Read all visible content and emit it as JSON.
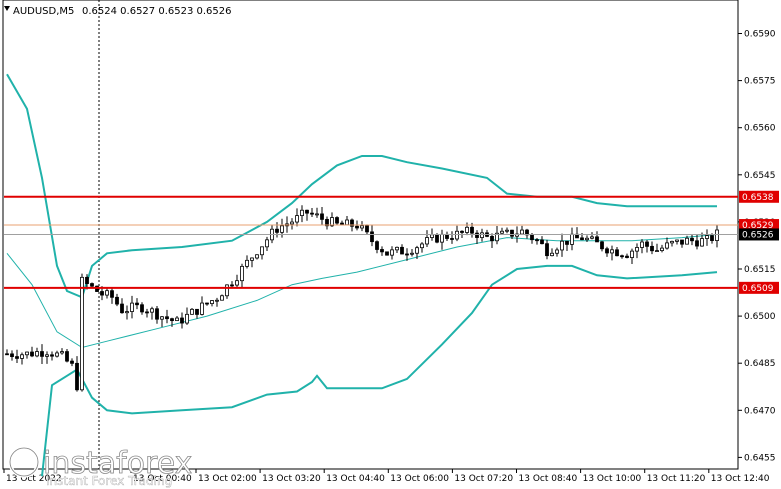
{
  "header": {
    "symbol": "AUDUSD,M5",
    "ohlc": "0.6524 0.6527 0.6523 0.6526"
  },
  "watermark": {
    "brand": "instaforex",
    "tagline": "Instant Forex Trading"
  },
  "colors": {
    "background": "#ffffff",
    "candle": "#000000",
    "bollinger": "#20b2aa",
    "level_line": "#e00000",
    "current_price_line": "#a0a0a0",
    "current_price_label": "#000000"
  },
  "chart_data": {
    "type": "candlestick",
    "symbol": "AUDUSD",
    "timeframe": "M5",
    "ylim": [
      0.645,
      0.66
    ],
    "yticks": [
      "0.6590",
      "0.6575",
      "0.6560",
      "0.6545",
      "0.6530",
      "0.6515",
      "0.6500",
      "0.6485",
      "0.6470",
      "0.6455"
    ],
    "xticks": [
      "13 Oct 2022",
      "13 Oct 00:40",
      "13 Oct 02:00",
      "13 Oct 03:20",
      "13 Oct 04:40",
      "13 Oct 06:00",
      "13 Oct 07:20",
      "13 Oct 08:40",
      "13 Oct 10:00",
      "13 Oct 11:20",
      "13 Oct 12:40"
    ],
    "levels": [
      {
        "label": "0.6538",
        "value": 0.6538,
        "kind": "resistance"
      },
      {
        "label": "0.6509",
        "value": 0.6509,
        "kind": "support"
      }
    ],
    "marker_labels": [
      {
        "label": "0.6529",
        "value": 0.6529,
        "color": "#e00000"
      },
      {
        "label": "0.6526",
        "value": 0.6526,
        "color": "#000000",
        "current": true
      }
    ],
    "close_path": [
      [
        0,
        0.6488
      ],
      [
        4,
        0.6488
      ],
      [
        8,
        0.6489
      ],
      [
        11,
        0.6487
      ],
      [
        13,
        0.6484
      ],
      [
        14,
        0.6478
      ],
      [
        15,
        0.6511
      ],
      [
        17,
        0.6509
      ],
      [
        19,
        0.6507
      ],
      [
        21,
        0.6506
      ],
      [
        23,
        0.6502
      ],
      [
        27,
        0.6503
      ],
      [
        31,
        0.65
      ],
      [
        34,
        0.6498
      ],
      [
        38,
        0.6502
      ],
      [
        42,
        0.6506
      ],
      [
        46,
        0.6513
      ],
      [
        50,
        0.6521
      ],
      [
        54,
        0.6528
      ],
      [
        58,
        0.6531
      ],
      [
        60,
        0.6533
      ],
      [
        63,
        0.6531
      ],
      [
        66,
        0.6529
      ],
      [
        70,
        0.6529
      ],
      [
        73,
        0.6524
      ],
      [
        76,
        0.652
      ],
      [
        80,
        0.6521
      ],
      [
        83,
        0.6523
      ],
      [
        86,
        0.6525
      ],
      [
        90,
        0.6526
      ],
      [
        93,
        0.6527
      ],
      [
        96,
        0.6525
      ],
      [
        100,
        0.6526
      ],
      [
        103,
        0.6527
      ],
      [
        106,
        0.6524
      ],
      [
        108,
        0.6521
      ],
      [
        112,
        0.6524
      ],
      [
        115,
        0.6525
      ],
      [
        118,
        0.6523
      ],
      [
        121,
        0.6521
      ],
      [
        124,
        0.652
      ],
      [
        127,
        0.6523
      ],
      [
        130,
        0.6521
      ],
      [
        133,
        0.6523
      ],
      [
        136,
        0.6524
      ],
      [
        140,
        0.6524
      ],
      [
        142,
        0.6526
      ]
    ],
    "bollinger": {
      "upper": [
        [
          0,
          0.6577
        ],
        [
          4,
          0.6566
        ],
        [
          7,
          0.6544
        ],
        [
          10,
          0.6516
        ],
        [
          12,
          0.6508
        ],
        [
          15,
          0.6506
        ],
        [
          17,
          0.6516
        ],
        [
          20,
          0.652
        ],
        [
          25,
          0.6521
        ],
        [
          35,
          0.6522
        ],
        [
          45,
          0.6524
        ],
        [
          52,
          0.653
        ],
        [
          57,
          0.6536
        ],
        [
          61,
          0.6542
        ],
        [
          66,
          0.6548
        ],
        [
          71,
          0.6551
        ],
        [
          75,
          0.6551
        ],
        [
          80,
          0.6549
        ],
        [
          87,
          0.6547
        ],
        [
          96,
          0.6544
        ],
        [
          100,
          0.6539
        ],
        [
          106,
          0.6538
        ],
        [
          113,
          0.6538
        ],
        [
          118,
          0.6536
        ],
        [
          124,
          0.6535
        ],
        [
          135,
          0.6535
        ],
        [
          142,
          0.6535
        ]
      ],
      "middle": [
        [
          0,
          0.652
        ],
        [
          5,
          0.651
        ],
        [
          10,
          0.6495
        ],
        [
          15,
          0.649
        ],
        [
          20,
          0.6492
        ],
        [
          30,
          0.6496
        ],
        [
          40,
          0.65
        ],
        [
          50,
          0.6505
        ],
        [
          57,
          0.651
        ],
        [
          63,
          0.6512
        ],
        [
          70,
          0.6514
        ],
        [
          80,
          0.6518
        ],
        [
          90,
          0.6522
        ],
        [
          100,
          0.6525
        ],
        [
          110,
          0.6524
        ],
        [
          118,
          0.6524
        ],
        [
          125,
          0.6524
        ],
        [
          135,
          0.6525
        ],
        [
          142,
          0.6526
        ]
      ],
      "lower": [
        [
          7,
          0.6449
        ],
        [
          9,
          0.6478
        ],
        [
          12,
          0.6481
        ],
        [
          14,
          0.6483
        ],
        [
          17,
          0.6474
        ],
        [
          20,
          0.647
        ],
        [
          25,
          0.6469
        ],
        [
          35,
          0.647
        ],
        [
          45,
          0.6471
        ],
        [
          52,
          0.6475
        ],
        [
          58,
          0.6476
        ],
        [
          61,
          0.6479
        ],
        [
          62,
          0.6481
        ],
        [
          64,
          0.6477
        ],
        [
          68,
          0.6477
        ],
        [
          75,
          0.6477
        ],
        [
          80,
          0.648
        ],
        [
          87,
          0.6491
        ],
        [
          93,
          0.6501
        ],
        [
          97,
          0.651
        ],
        [
          102,
          0.6515
        ],
        [
          108,
          0.6516
        ],
        [
          113,
          0.6516
        ],
        [
          118,
          0.6513
        ],
        [
          124,
          0.6512
        ],
        [
          135,
          0.6513
        ],
        [
          142,
          0.6514
        ]
      ]
    }
  }
}
